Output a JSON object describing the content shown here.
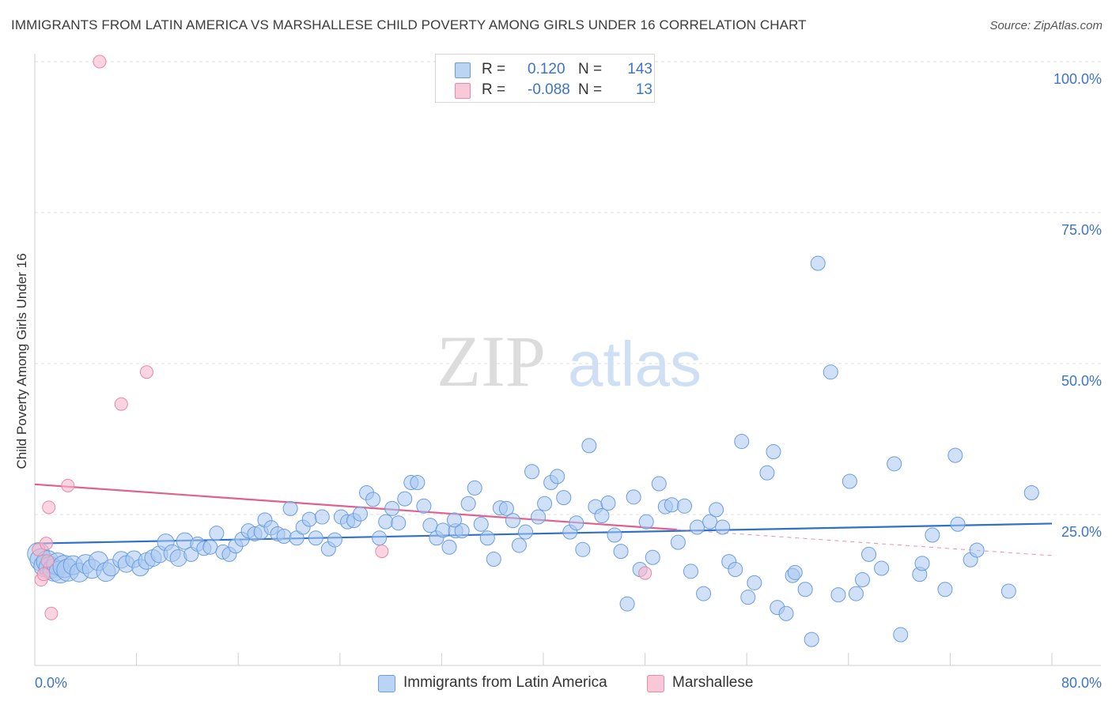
{
  "header": {
    "title": "IMMIGRANTS FROM LATIN AMERICA VS MARSHALLESE CHILD POVERTY AMONG GIRLS UNDER 16 CORRELATION CHART",
    "source": "Source: ZipAtlas.com"
  },
  "watermark": {
    "part1": "ZIP",
    "part2": "atlas"
  },
  "legend": {
    "r_label": "R =",
    "n_label": "N =",
    "series": [
      {
        "r": "0.120",
        "n": "143",
        "color": "#a9c8f0"
      },
      {
        "r": "-0.088",
        "n": "13",
        "color": "#f7b8cb"
      }
    ]
  },
  "bottom_legend": {
    "items": [
      "Immigrants from Latin America",
      "Marshallese"
    ]
  },
  "colors": {
    "blue_fill": "#a9c8f0",
    "blue_stroke": "#6a9de0",
    "blue_line": "#2f6fd0",
    "pink_fill": "#f7b8cb",
    "pink_stroke": "#e58aa8",
    "pink_line": "#e0608e",
    "tick_text": "#3d74c7"
  },
  "chart_data": {
    "type": "scatter",
    "title": "IMMIGRANTS FROM LATIN AMERICA VS MARSHALLESE CHILD POVERTY AMONG GIRLS UNDER 16 CORRELATION CHART",
    "xlabel": "",
    "ylabel": "Child Poverty Among Girls Under 16",
    "xlim": [
      0,
      80
    ],
    "ylim": [
      0,
      100
    ],
    "x_tick_labels": [
      "0.0%",
      "80.0%"
    ],
    "y_tick_labels": [
      "25.0%",
      "50.0%",
      "75.0%",
      "100.0%"
    ],
    "y_ticks": [
      25,
      50,
      75,
      100
    ],
    "grid": true,
    "legend_position": "top-center",
    "series": [
      {
        "name": "Immigrants from Latin America",
        "r": 0.12,
        "n": 143,
        "trend": {
          "x0": 0,
          "y0": 20.2,
          "x1": 80,
          "y1": 23.5
        },
        "points": [
          [
            0.3,
            18.5
          ],
          [
            0.5,
            17.5
          ],
          [
            0.8,
            16.5
          ],
          [
            1.0,
            17.2
          ],
          [
            1.2,
            16.2
          ],
          [
            1.5,
            15.8
          ],
          [
            1.8,
            16.8
          ],
          [
            2.0,
            15.5
          ],
          [
            2.3,
            16.4
          ],
          [
            2.6,
            15.8
          ],
          [
            3.0,
            16.6
          ],
          [
            3.5,
            15.4
          ],
          [
            4.0,
            16.8
          ],
          [
            4.5,
            16.0
          ],
          [
            5.0,
            17.3
          ],
          [
            5.6,
            15.5
          ],
          [
            6.0,
            16.2
          ],
          [
            6.8,
            17.5
          ],
          [
            7.2,
            16.8
          ],
          [
            7.8,
            17.6
          ],
          [
            8.3,
            16.2
          ],
          [
            8.8,
            17.3
          ],
          [
            9.3,
            17.8
          ],
          [
            9.8,
            18.4
          ],
          [
            10.3,
            20.4
          ],
          [
            10.8,
            18.6
          ],
          [
            11.3,
            17.8
          ],
          [
            11.8,
            20.6
          ],
          [
            12.3,
            18.4
          ],
          [
            12.8,
            20.1
          ],
          [
            13.3,
            19.4
          ],
          [
            13.8,
            19.6
          ],
          [
            14.3,
            21.9
          ],
          [
            14.8,
            18.8
          ],
          [
            15.3,
            18.4
          ],
          [
            15.8,
            19.8
          ],
          [
            16.3,
            20.9
          ],
          [
            16.8,
            22.3
          ],
          [
            17.3,
            21.8
          ],
          [
            17.8,
            22.1
          ],
          [
            18.1,
            24.1
          ],
          [
            18.6,
            22.8
          ],
          [
            19.1,
            21.8
          ],
          [
            19.6,
            21.4
          ],
          [
            20.1,
            26.0
          ],
          [
            20.6,
            21.1
          ],
          [
            21.1,
            22.9
          ],
          [
            21.6,
            24.2
          ],
          [
            22.1,
            21.1
          ],
          [
            22.6,
            24.6
          ],
          [
            23.1,
            19.3
          ],
          [
            23.6,
            20.8
          ],
          [
            24.1,
            24.6
          ],
          [
            24.6,
            23.8
          ],
          [
            25.1,
            24.0
          ],
          [
            25.6,
            25.1
          ],
          [
            26.1,
            28.6
          ],
          [
            26.6,
            27.5
          ],
          [
            27.1,
            21.1
          ],
          [
            27.6,
            23.8
          ],
          [
            28.1,
            26.0
          ],
          [
            28.6,
            23.6
          ],
          [
            29.1,
            27.6
          ],
          [
            29.6,
            30.3
          ],
          [
            30.1,
            30.3
          ],
          [
            30.6,
            26.4
          ],
          [
            31.1,
            23.2
          ],
          [
            31.6,
            21.1
          ],
          [
            32.1,
            22.4
          ],
          [
            32.6,
            19.6
          ],
          [
            33.1,
            22.3
          ],
          [
            33.6,
            22.3
          ],
          [
            34.1,
            26.8
          ],
          [
            34.6,
            29.4
          ],
          [
            35.1,
            23.4
          ],
          [
            35.6,
            21.1
          ],
          [
            36.1,
            17.6
          ],
          [
            36.6,
            26.1
          ],
          [
            37.1,
            26.0
          ],
          [
            37.6,
            24.0
          ],
          [
            38.1,
            19.9
          ],
          [
            38.6,
            22.1
          ],
          [
            39.1,
            32.1
          ],
          [
            39.6,
            24.6
          ],
          [
            40.1,
            26.8
          ],
          [
            40.6,
            30.3
          ],
          [
            41.1,
            31.3
          ],
          [
            41.6,
            27.8
          ],
          [
            42.1,
            22.1
          ],
          [
            42.6,
            23.6
          ],
          [
            43.1,
            19.2
          ],
          [
            43.6,
            36.4
          ],
          [
            44.1,
            26.3
          ],
          [
            44.6,
            24.8
          ],
          [
            45.1,
            26.9
          ],
          [
            45.6,
            21.6
          ],
          [
            46.1,
            18.9
          ],
          [
            46.6,
            10.2
          ],
          [
            47.1,
            27.9
          ],
          [
            47.6,
            15.9
          ],
          [
            48.1,
            23.8
          ],
          [
            48.6,
            17.9
          ],
          [
            49.1,
            30.1
          ],
          [
            49.6,
            26.3
          ],
          [
            50.1,
            26.6
          ],
          [
            50.6,
            20.4
          ],
          [
            51.1,
            26.4
          ],
          [
            51.6,
            15.6
          ],
          [
            52.1,
            22.9
          ],
          [
            52.6,
            11.9
          ],
          [
            53.1,
            23.8
          ],
          [
            53.6,
            25.8
          ],
          [
            54.1,
            22.9
          ],
          [
            54.6,
            17.2
          ],
          [
            55.1,
            15.9
          ],
          [
            55.6,
            37.1
          ],
          [
            56.1,
            11.3
          ],
          [
            56.6,
            13.7
          ],
          [
            57.6,
            31.9
          ],
          [
            58.1,
            35.4
          ],
          [
            58.4,
            9.6
          ],
          [
            59.1,
            8.6
          ],
          [
            59.6,
            14.9
          ],
          [
            59.8,
            15.4
          ],
          [
            60.6,
            12.6
          ],
          [
            61.1,
            4.3
          ],
          [
            61.6,
            66.6
          ],
          [
            62.6,
            48.6
          ],
          [
            63.2,
            11.7
          ],
          [
            64.1,
            30.5
          ],
          [
            64.6,
            11.9
          ],
          [
            65.1,
            14.2
          ],
          [
            65.6,
            18.4
          ],
          [
            66.6,
            16.1
          ],
          [
            67.6,
            33.4
          ],
          [
            68.1,
            5.1
          ],
          [
            69.6,
            15.1
          ],
          [
            69.8,
            16.9
          ],
          [
            70.6,
            21.6
          ],
          [
            71.6,
            12.6
          ],
          [
            72.4,
            34.8
          ],
          [
            72.6,
            23.4
          ],
          [
            73.6,
            17.5
          ],
          [
            74.1,
            19.1
          ],
          [
            76.6,
            12.3
          ],
          [
            78.4,
            28.6
          ],
          [
            33.0,
            24.1
          ]
        ]
      },
      {
        "name": "Marshallese",
        "r": -0.088,
        "n": 13,
        "trend": {
          "x0": 0,
          "y0": 30.0,
          "x1": 50.5,
          "y1": 22.5
        },
        "trend_dashed": {
          "x0": 50.5,
          "y0": 22.5,
          "x1": 80,
          "y1": 18.2
        },
        "points": [
          [
            0.3,
            19.2
          ],
          [
            0.5,
            14.2
          ],
          [
            0.7,
            15.1
          ],
          [
            0.9,
            20.2
          ],
          [
            1.0,
            17.3
          ],
          [
            1.1,
            26.2
          ],
          [
            1.3,
            8.6
          ],
          [
            2.6,
            29.8
          ],
          [
            5.1,
            100.0
          ],
          [
            6.8,
            43.3
          ],
          [
            8.8,
            48.6
          ],
          [
            27.3,
            18.9
          ],
          [
            48.0,
            15.3
          ]
        ]
      }
    ]
  }
}
